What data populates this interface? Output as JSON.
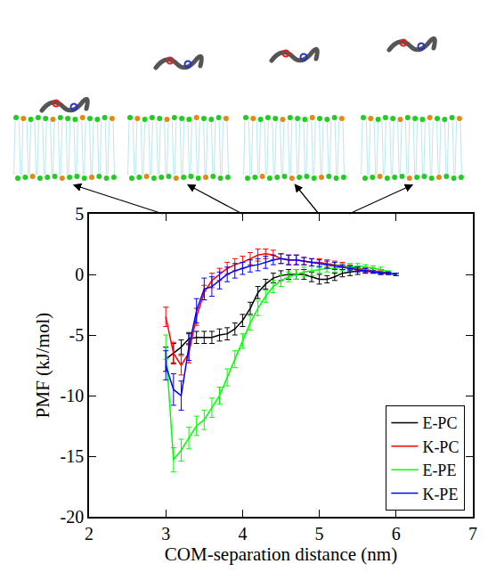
{
  "chart_data": {
    "type": "line",
    "x_label": "COM-separation distance (nm)",
    "y_label": "PMF (kJ/mol)",
    "xlim": [
      2,
      7
    ],
    "xticks": [
      2,
      3,
      4,
      5,
      6,
      7
    ],
    "ylim": [
      -20,
      5
    ],
    "yticks": [
      -20,
      -15,
      -10,
      -5,
      0,
      5
    ],
    "grid": false,
    "legend": "lower right",
    "x": [
      3.0,
      3.1,
      3.2,
      3.3,
      3.4,
      3.5,
      3.6,
      3.7,
      3.8,
      3.9,
      4.0,
      4.1,
      4.2,
      4.3,
      4.4,
      4.5,
      4.6,
      4.7,
      4.8,
      4.9,
      5.0,
      5.1,
      5.2,
      5.3,
      5.4,
      5.5,
      5.6,
      5.7,
      5.8,
      5.9,
      6.0
    ],
    "series": [
      {
        "name": "E-PC",
        "color": "#000000",
        "values": [
          -7,
          -6.5,
          -6,
          -5.3,
          -5.2,
          -5.2,
          -5.2,
          -5.0,
          -4.9,
          -4.5,
          -3.8,
          -2.8,
          -1.5,
          -0.8,
          -0.3,
          -0.1,
          0.0,
          0.0,
          0.0,
          -0.2,
          -0.4,
          -0.4,
          -0.2,
          0.1,
          0.2,
          0.3,
          0.3,
          0.3,
          0.2,
          0.1,
          0
        ],
        "errors": [
          1.0,
          0.8,
          0.6,
          0.5,
          0.5,
          0.5,
          0.5,
          0.5,
          0.5,
          0.5,
          0.5,
          0.5,
          0.5,
          0.4,
          0.4,
          0.4,
          0.4,
          0.4,
          0.4,
          0.4,
          0.4,
          0.3,
          0.3,
          0.3,
          0.3,
          0.3,
          0.2,
          0.2,
          0.2,
          0.1,
          0.1
        ]
      },
      {
        "name": "K-PC",
        "color": "#ff0000",
        "values": [
          -3.5,
          -6.5,
          -7.5,
          -6.5,
          -3.5,
          -1.5,
          -0.5,
          0.0,
          0.5,
          0.8,
          1.0,
          1.3,
          1.6,
          1.7,
          1.6,
          1.3,
          1.2,
          1.2,
          1.1,
          1.0,
          1.0,
          0.9,
          0.8,
          0.7,
          0.6,
          0.5,
          0.4,
          0.3,
          0.2,
          0.1,
          0
        ],
        "errors": [
          0.8,
          0.9,
          0.8,
          0.8,
          0.7,
          0.6,
          0.6,
          0.5,
          0.5,
          0.5,
          0.5,
          0.5,
          0.5,
          0.4,
          0.4,
          0.4,
          0.4,
          0.4,
          0.3,
          0.3,
          0.3,
          0.3,
          0.3,
          0.3,
          0.2,
          0.2,
          0.2,
          0.2,
          0.1,
          0.1,
          0.1
        ]
      },
      {
        "name": "E-PE",
        "color": "#00ff00",
        "values": [
          -6,
          -15.3,
          -14.5,
          -13.5,
          -12.5,
          -12,
          -11,
          -10,
          -8.5,
          -7,
          -5.5,
          -4,
          -2.8,
          -1.8,
          -1.0,
          -0.5,
          -0.2,
          0.0,
          0.2,
          0.3,
          0.4,
          0.5,
          0.5,
          0.6,
          0.6,
          0.7,
          0.6,
          0.5,
          0.4,
          0.2,
          0
        ],
        "errors": [
          1.0,
          1.0,
          0.9,
          0.9,
          0.8,
          0.8,
          0.8,
          0.7,
          0.7,
          0.7,
          0.6,
          0.6,
          0.6,
          0.5,
          0.5,
          0.5,
          0.4,
          0.4,
          0.4,
          0.4,
          0.3,
          0.3,
          0.3,
          0.3,
          0.3,
          0.2,
          0.2,
          0.2,
          0.2,
          0.1,
          0.1
        ]
      },
      {
        "name": "K-PE",
        "color": "#0000ff",
        "values": [
          -7.5,
          -9.5,
          -10,
          -6,
          -3,
          -1.2,
          -1.0,
          -0.5,
          0.0,
          0.3,
          0.5,
          0.7,
          0.8,
          1.0,
          1.2,
          1.3,
          1.2,
          1.2,
          1.1,
          1.0,
          0.9,
          0.8,
          0.7,
          0.6,
          0.5,
          0.4,
          0.3,
          0.2,
          0.1,
          0.1,
          0
        ],
        "errors": [
          1.2,
          1.3,
          1.2,
          1.1,
          1.0,
          0.9,
          0.8,
          0.7,
          0.6,
          0.6,
          0.5,
          0.5,
          0.5,
          0.5,
          0.4,
          0.4,
          0.4,
          0.4,
          0.3,
          0.3,
          0.3,
          0.3,
          0.3,
          0.2,
          0.2,
          0.2,
          0.2,
          0.1,
          0.1,
          0.1,
          0.1
        ]
      }
    ]
  }
}
